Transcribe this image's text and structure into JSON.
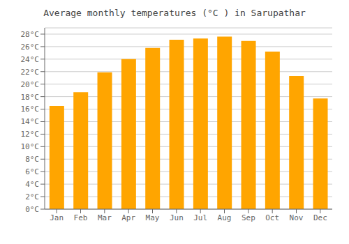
{
  "chart_data": {
    "type": "bar",
    "title": "Average monthly temperatures (°C ) in Sarupathar",
    "categories": [
      "Jan",
      "Feb",
      "Mar",
      "Apr",
      "May",
      "Jun",
      "Jul",
      "Aug",
      "Sep",
      "Oct",
      "Nov",
      "Dec"
    ],
    "values": [
      16.5,
      18.7,
      21.9,
      24.0,
      25.8,
      27.1,
      27.3,
      27.6,
      26.9,
      25.2,
      21.3,
      17.7
    ],
    "color": "#FFA500",
    "ylim": [
      0,
      29
    ],
    "yticks": [
      {
        "value": 0,
        "label": "0°C"
      },
      {
        "value": 2,
        "label": "2°C"
      },
      {
        "value": 4,
        "label": "4°C"
      },
      {
        "value": 6,
        "label": "6°C"
      },
      {
        "value": 8,
        "label": "8°C"
      },
      {
        "value": 10,
        "label": "10°C"
      },
      {
        "value": 12,
        "label": "12°C"
      },
      {
        "value": 14,
        "label": "14°C"
      },
      {
        "value": 16,
        "label": "16°C"
      },
      {
        "value": 18,
        "label": "18°C"
      },
      {
        "value": 20,
        "label": "20°C"
      },
      {
        "value": 22,
        "label": "22°C"
      },
      {
        "value": 24,
        "label": "24°C"
      },
      {
        "value": 26,
        "label": "26°C"
      },
      {
        "value": 28,
        "label": "28°C"
      }
    ],
    "grid": true
  }
}
